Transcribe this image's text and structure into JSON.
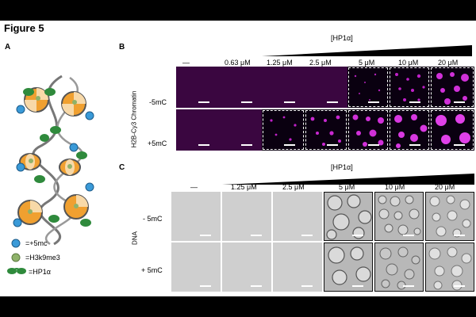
{
  "figure": {
    "title": "Figure 5",
    "panel_a": {
      "letter": "A",
      "legend": [
        {
          "symbol": "blue-circle",
          "label": "=+5mc",
          "color": "#3a9ad8"
        },
        {
          "symbol": "green-circle",
          "label": "=H3k9me3",
          "color": "#8fb26a"
        },
        {
          "symbol": "hp1-dimer",
          "label": "=HP1α",
          "color": "#2f8a3c"
        }
      ]
    },
    "panel_b": {
      "letter": "B",
      "header": "[HP1α]",
      "concentrations": [
        "—",
        "0.63 μM",
        "1.25 μM",
        "2.5 μM",
        "5 μM",
        "10 μM",
        "20 μM"
      ],
      "ylabel": "H2B-Cy3 Chromatin",
      "rows": [
        "-5mC",
        "+5mC"
      ]
    },
    "panel_c": {
      "letter": "C",
      "header": "[HP1α]",
      "concentrations": [
        "—",
        "1.25 μM",
        "2.5 μM",
        "5 μM",
        "10 μM",
        "20 μM"
      ],
      "ylabel": "DNA",
      "rows": [
        "- 5mC",
        "+ 5mC"
      ]
    },
    "colors": {
      "dark_purple": "#3a0640",
      "droplet_magenta": "#c020c8",
      "brightfield_gray": "#cfcfcf",
      "methyl_blue": "#3a9ad8",
      "h3k9me3_green": "#8fb26a",
      "hp1_green": "#2f8a3c"
    }
  }
}
